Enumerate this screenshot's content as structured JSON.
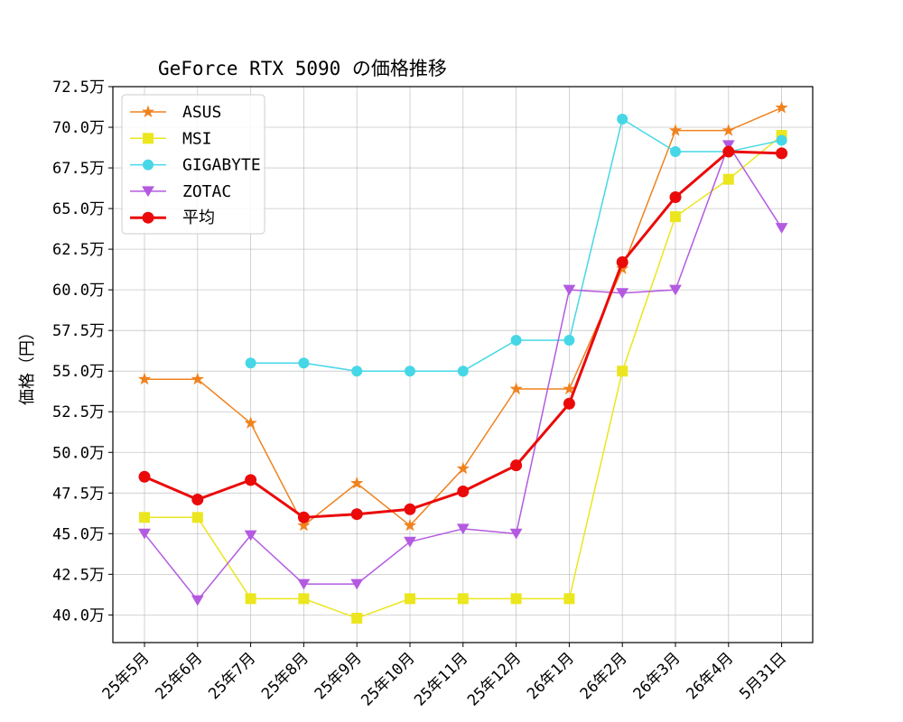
{
  "chart_data": {
    "type": "line",
    "title": "GeForce RTX 5090 の価格推移",
    "xlabel": "",
    "ylabel": "価格（円）",
    "categories": [
      "25年5月",
      "25年6月",
      "25年7月",
      "25年8月",
      "25年9月",
      "25年10月",
      "25年11月",
      "25年12月",
      "26年1月",
      "26年2月",
      "26年3月",
      "26年4月",
      "5月31日"
    ],
    "ylim": [
      38.3,
      72.5
    ],
    "yticks": [
      40.0,
      42.5,
      45.0,
      47.5,
      50.0,
      52.5,
      55.0,
      57.5,
      60.0,
      62.5,
      65.0,
      67.5,
      70.0,
      72.5
    ],
    "ytick_labels": [
      "40.0万",
      "42.5万",
      "45.0万",
      "47.5万",
      "50.0万",
      "52.5万",
      "55.0万",
      "57.5万",
      "60.0万",
      "62.5万",
      "65.0万",
      "67.5万",
      "70.0万",
      "72.5万"
    ],
    "grid": true,
    "legend_position": "top-left",
    "series": [
      {
        "name": "ASUS",
        "color": "#f0821e",
        "marker": "star",
        "width": 1.5,
        "values": [
          54.5,
          54.5,
          51.8,
          45.5,
          48.1,
          45.5,
          49.0,
          53.9,
          53.9,
          61.3,
          69.8,
          69.8,
          71.2
        ]
      },
      {
        "name": "MSI",
        "color": "#ebe61e",
        "marker": "square",
        "width": 1.5,
        "values": [
          46.0,
          46.0,
          41.0,
          41.0,
          39.8,
          41.0,
          41.0,
          41.0,
          41.0,
          55.0,
          64.5,
          66.8,
          69.5
        ]
      },
      {
        "name": "GIGABYTE",
        "color": "#46d7e6",
        "marker": "circle",
        "width": 1.5,
        "values": [
          null,
          null,
          55.5,
          55.5,
          55.0,
          55.0,
          55.0,
          56.9,
          56.9,
          70.5,
          68.5,
          68.5,
          69.2
        ]
      },
      {
        "name": "ZOTAC",
        "color": "#b45ae1",
        "marker": "triangle-down",
        "width": 1.5,
        "values": [
          45.0,
          40.9,
          44.9,
          41.9,
          41.9,
          44.5,
          45.3,
          45.0,
          60.0,
          59.8,
          60.0,
          68.9,
          63.8
        ]
      },
      {
        "name": "平均",
        "color": "#eb0a0a",
        "marker": "circle",
        "width": 3,
        "values": [
          48.5,
          47.1,
          48.3,
          46.0,
          46.2,
          46.5,
          47.6,
          49.2,
          53.0,
          61.7,
          65.7,
          68.5,
          68.4
        ]
      }
    ]
  }
}
